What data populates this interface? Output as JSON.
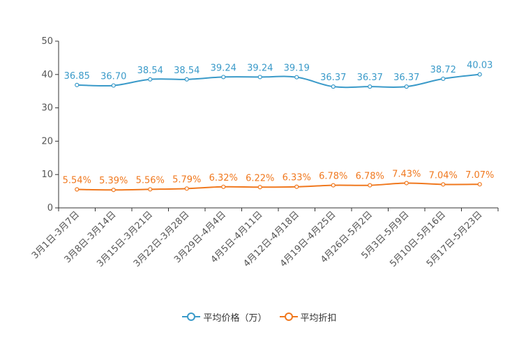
{
  "chart_data": {
    "type": "line",
    "categories": [
      "3月1日-3月7日",
      "3月8日-3月14日",
      "3月15日-3月21日",
      "3月22日-3月28日",
      "3月29日-4月4日",
      "4月5日-4月11日",
      "4月12日-4月18日",
      "4月19日-4月25日",
      "4月26日-5月2日",
      "5月3日-5月9日",
      "5月10日-5月16日",
      "5月17日-5月23日"
    ],
    "ylim": [
      0,
      50
    ],
    "yticks": [
      0,
      10,
      20,
      30,
      40,
      50
    ],
    "series": [
      {
        "name": "平均价格（万）",
        "color": "#3a9ac9",
        "values": [
          36.85,
          36.7,
          38.54,
          38.54,
          39.24,
          39.24,
          39.19,
          36.37,
          36.37,
          36.37,
          38.72,
          40.03
        ],
        "labels": [
          "36.85",
          "36.70",
          "38.54",
          "38.54",
          "39.24",
          "39.24",
          "39.19",
          "36.37",
          "36.37",
          "36.37",
          "38.72",
          "40.03"
        ]
      },
      {
        "name": "平均折扣",
        "color": "#f0781e",
        "values": [
          5.54,
          5.39,
          5.56,
          5.79,
          6.32,
          6.22,
          6.33,
          6.78,
          6.78,
          7.43,
          7.04,
          7.07
        ],
        "labels": [
          "5.54%",
          "5.39%",
          "5.56%",
          "5.79%",
          "6.32%",
          "6.22%",
          "6.33%",
          "6.78%",
          "6.78%",
          "7.43%",
          "7.04%",
          "7.07%"
        ]
      }
    ],
    "legend_position": "bottom-center"
  }
}
